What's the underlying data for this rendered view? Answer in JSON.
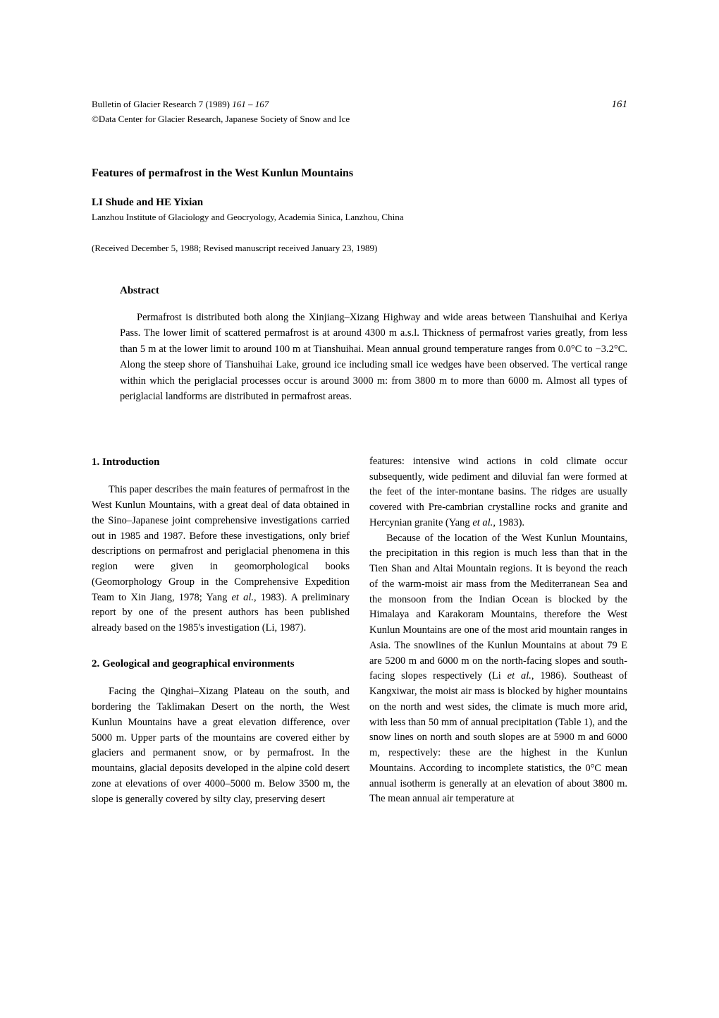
{
  "header": {
    "journal": "Bulletin of Glacier Research 7 (1989)",
    "page_range": "161 – 167",
    "copyright": "©Data Center for Glacier Research, Japanese Society of Snow and Ice",
    "page_number": "161"
  },
  "title": "Features of permafrost in the West Kunlun Mountains",
  "authors": "LI Shude and HE Yixian",
  "affiliation": "Lanzhou Institute of Glaciology and Geocryology, Academia Sinica, Lanzhou, China",
  "received": "(Received December 5, 1988; Revised manuscript received January 23, 1989)",
  "abstract_heading": "Abstract",
  "abstract_text": "Permafrost is distributed both along the Xinjiang–Xizang Highway and wide areas between Tianshuihai and Keriya Pass. The lower limit of scattered permafrost is at around 4300 m a.s.l. Thickness of permafrost varies greatly, from less than 5 m at the lower limit to around 100 m at Tianshuihai. Mean annual ground temperature ranges from 0.0°C to −3.2°C. Along the steep shore of Tianshuihai Lake, ground ice including small ice wedges have been observed. The vertical range within which the periglacial processes occur is around 3000 m: from 3800 m to more than 6000 m. Almost all types of periglacial landforms are distributed in permafrost areas.",
  "section1_heading": "1. Introduction",
  "section1_para1_a": "This paper describes the main features of permafrost in the West Kunlun Mountains, with a great deal of data obtained in the Sino–Japanese joint comprehensive investigations carried out in 1985 and 1987. Before these investigations, only brief descriptions on permafrost and periglacial phenomena in this region were given in geomorphological books (Geomorphology Group in the Comprehensive Expedition Team to Xin Jiang, 1978; Yang ",
  "section1_para1_b": ", 1983). A preliminary report by one of the present authors has been published already based on the 1985's investigation (Li, 1987).",
  "etal1": "et al.",
  "section2_heading": "2. Geological and geographical environments",
  "section2_para1": "Facing the Qinghai–Xizang Plateau on the south, and bordering the Taklimakan Desert on the north, the West Kunlun Mountains have a great elevation difference, over 5000 m. Upper parts of the mountains are covered either by glaciers and permanent snow, or by permafrost. In the mountains, glacial deposits developed in the alpine cold desert zone at elevations of over 4000–5000 m. Below 3500 m, the slope is generally covered by silty clay, preserving desert",
  "col2_para1_a": "features: intensive wind actions in cold climate occur subsequently, wide pediment and diluvial fan were formed at the feet of the inter-montane basins. The ridges are usually covered with Pre-cambrian crystalline rocks and granite and Hercynian granite (Yang ",
  "col2_para1_b": ", 1983).",
  "etal2": "et al.",
  "col2_para2_a": "Because of the location of the West Kunlun Mountains, the precipitation in this region is much less than that in the Tien Shan and Altai Mountain regions. It is beyond the reach of the warm-moist air mass from the Mediterranean Sea and the monsoon from the Indian Ocean is blocked by the Himalaya and Karakoram Mountains, therefore the West Kunlun Mountains are one of the most arid mountain ranges in Asia. The snowlines of the Kunlun Mountains at about 79 E are 5200 m and 6000 m on the north-facing slopes and south-facing slopes respectively (Li ",
  "col2_para2_b": ", 1986). Southeast of Kangxiwar, the moist air mass is blocked by higher mountains on the north and west sides, the climate is much more arid, with less than 50 mm of annual precipitation (Table 1), and the snow lines on north and south slopes are at 5900 m and 6000 m, respectively: these are the highest in the Kunlun Mountains. According to incomplete statistics, the 0°C mean annual isotherm is generally at an elevation of about 3800 m. The mean annual air temperature at",
  "etal3": "et al."
}
